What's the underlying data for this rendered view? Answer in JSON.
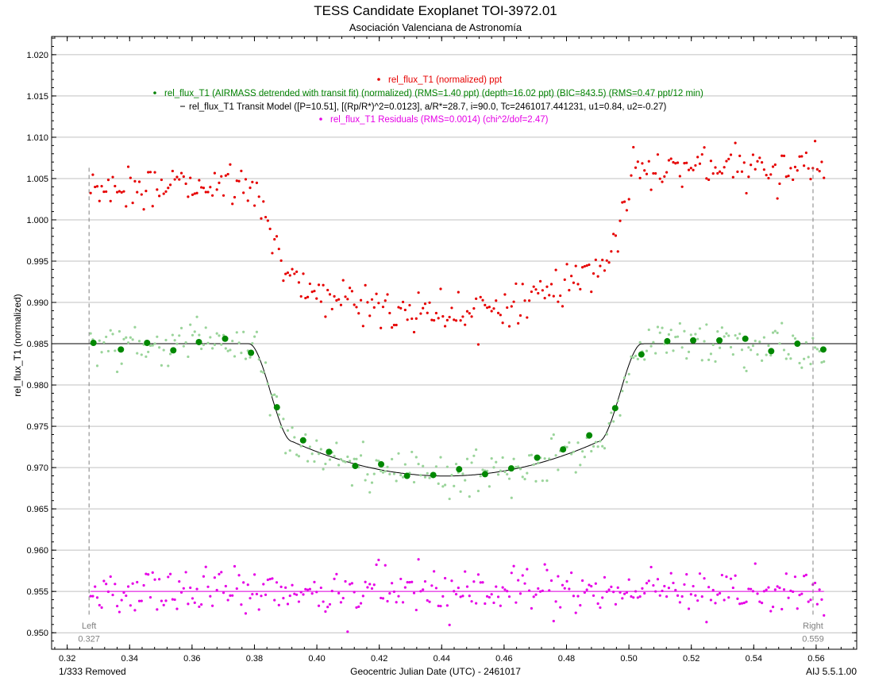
{
  "chart_data": {
    "type": "scatter",
    "title": "TESS Candidate Exoplanet TOI-3972.01",
    "subtitle": "Asociación Valenciana de Astronomía",
    "xlabel": "Geocentric Julian Date (UTC) - 2461017",
    "ylabel": "rel_flux_T1 (normalized)",
    "xlim": [
      0.315,
      0.573
    ],
    "ylim": [
      0.948,
      1.0222
    ],
    "x_ticks": [
      0.32,
      0.34,
      0.36,
      0.38,
      0.4,
      0.42,
      0.44,
      0.46,
      0.48,
      0.5,
      0.52,
      0.54,
      0.56
    ],
    "x_tick_labels": [
      "0.32",
      "0.34",
      "0.36",
      "0.38",
      "0.40",
      "0.42",
      "0.44",
      "0.46",
      "0.48",
      "0.50",
      "0.52",
      "0.54",
      "0.56"
    ],
    "y_ticks": [
      0.95,
      0.955,
      0.96,
      0.965,
      0.97,
      0.975,
      0.98,
      0.985,
      0.99,
      0.995,
      1.0,
      1.005,
      1.01,
      1.015,
      1.02
    ],
    "y_tick_labels": [
      "0.950",
      "0.955",
      "0.960",
      "0.965",
      "0.970",
      "0.975",
      "0.980",
      "0.985",
      "0.990",
      "0.995",
      "1.000",
      "1.005",
      "1.010",
      "1.015",
      "1.020"
    ],
    "grid": true,
    "legend_position": "top-center",
    "transit_model": {
      "period": 10.51,
      "rp_rs_sq": 0.0123,
      "a_rs": 28.7,
      "inc": 90.0,
      "tc": 2461017.441231,
      "u1": 0.84,
      "u2": -0.27,
      "baseline": 0.985,
      "depth": 0.01602
    },
    "series": [
      {
        "name": "rel_flux_T1 (normalized) ppt",
        "color": "#e60000",
        "offset": 1.005,
        "kind": "raw"
      },
      {
        "name": "rel_flux_T1 (AIRMASS detrended with transit fit) (normalized) (RMS=1.40 ppt) (depth=16.02 ppt) (BIC=843.5) (RMS=0.47 ppt/12 min)",
        "color": "#008000",
        "offset": 0.985,
        "kind": "detrended"
      },
      {
        "name": "rel_flux_T1 Transit Model ([P=10.51], [(Rp/R*)^2=0.0123], a/R*=28.7, i=90.0, Tc=2461017.441231, u1=0.84, u2=-0.27)",
        "color": "#000000",
        "kind": "model"
      },
      {
        "name": "rel_flux_T1 Residuals (RMS=0.0014) (chi^2/dof=2.47)",
        "color": "#e600e6",
        "offset": 0.955,
        "kind": "residuals"
      }
    ],
    "binned_points": [
      {
        "x": 0.3284,
        "y": 0.9851
      },
      {
        "x": 0.3372,
        "y": 0.9843
      },
      {
        "x": 0.3456,
        "y": 0.9851
      },
      {
        "x": 0.354,
        "y": 0.9842
      },
      {
        "x": 0.3622,
        "y": 0.9852
      },
      {
        "x": 0.3706,
        "y": 0.9856
      },
      {
        "x": 0.3789,
        "y": 0.9839
      },
      {
        "x": 0.3872,
        "y": 0.9773
      },
      {
        "x": 0.3956,
        "y": 0.9733
      },
      {
        "x": 0.4039,
        "y": 0.9719
      },
      {
        "x": 0.4123,
        "y": 0.9702
      },
      {
        "x": 0.4206,
        "y": 0.9704
      },
      {
        "x": 0.4289,
        "y": 0.969
      },
      {
        "x": 0.4373,
        "y": 0.9691
      },
      {
        "x": 0.4456,
        "y": 0.9698
      },
      {
        "x": 0.4539,
        "y": 0.9692
      },
      {
        "x": 0.4623,
        "y": 0.9699
      },
      {
        "x": 0.4706,
        "y": 0.9712
      },
      {
        "x": 0.4789,
        "y": 0.9722
      },
      {
        "x": 0.4873,
        "y": 0.9739
      },
      {
        "x": 0.4956,
        "y": 0.9772
      },
      {
        "x": 0.504,
        "y": 0.9837
      },
      {
        "x": 0.5123,
        "y": 0.9853
      },
      {
        "x": 0.5206,
        "y": 0.9854
      },
      {
        "x": 0.529,
        "y": 0.9854
      },
      {
        "x": 0.5373,
        "y": 0.9856
      },
      {
        "x": 0.5456,
        "y": 0.9841
      },
      {
        "x": 0.554,
        "y": 0.985
      },
      {
        "x": 0.5623,
        "y": 0.9843
      }
    ],
    "markers": [
      {
        "label": "Left",
        "value": "0.327",
        "x": 0.327
      },
      {
        "label": "Right",
        "value": "0.559",
        "x": 0.559
      }
    ]
  },
  "footer": {
    "removed": "1/333 Removed",
    "version": "AIJ 5.5.1.00"
  }
}
